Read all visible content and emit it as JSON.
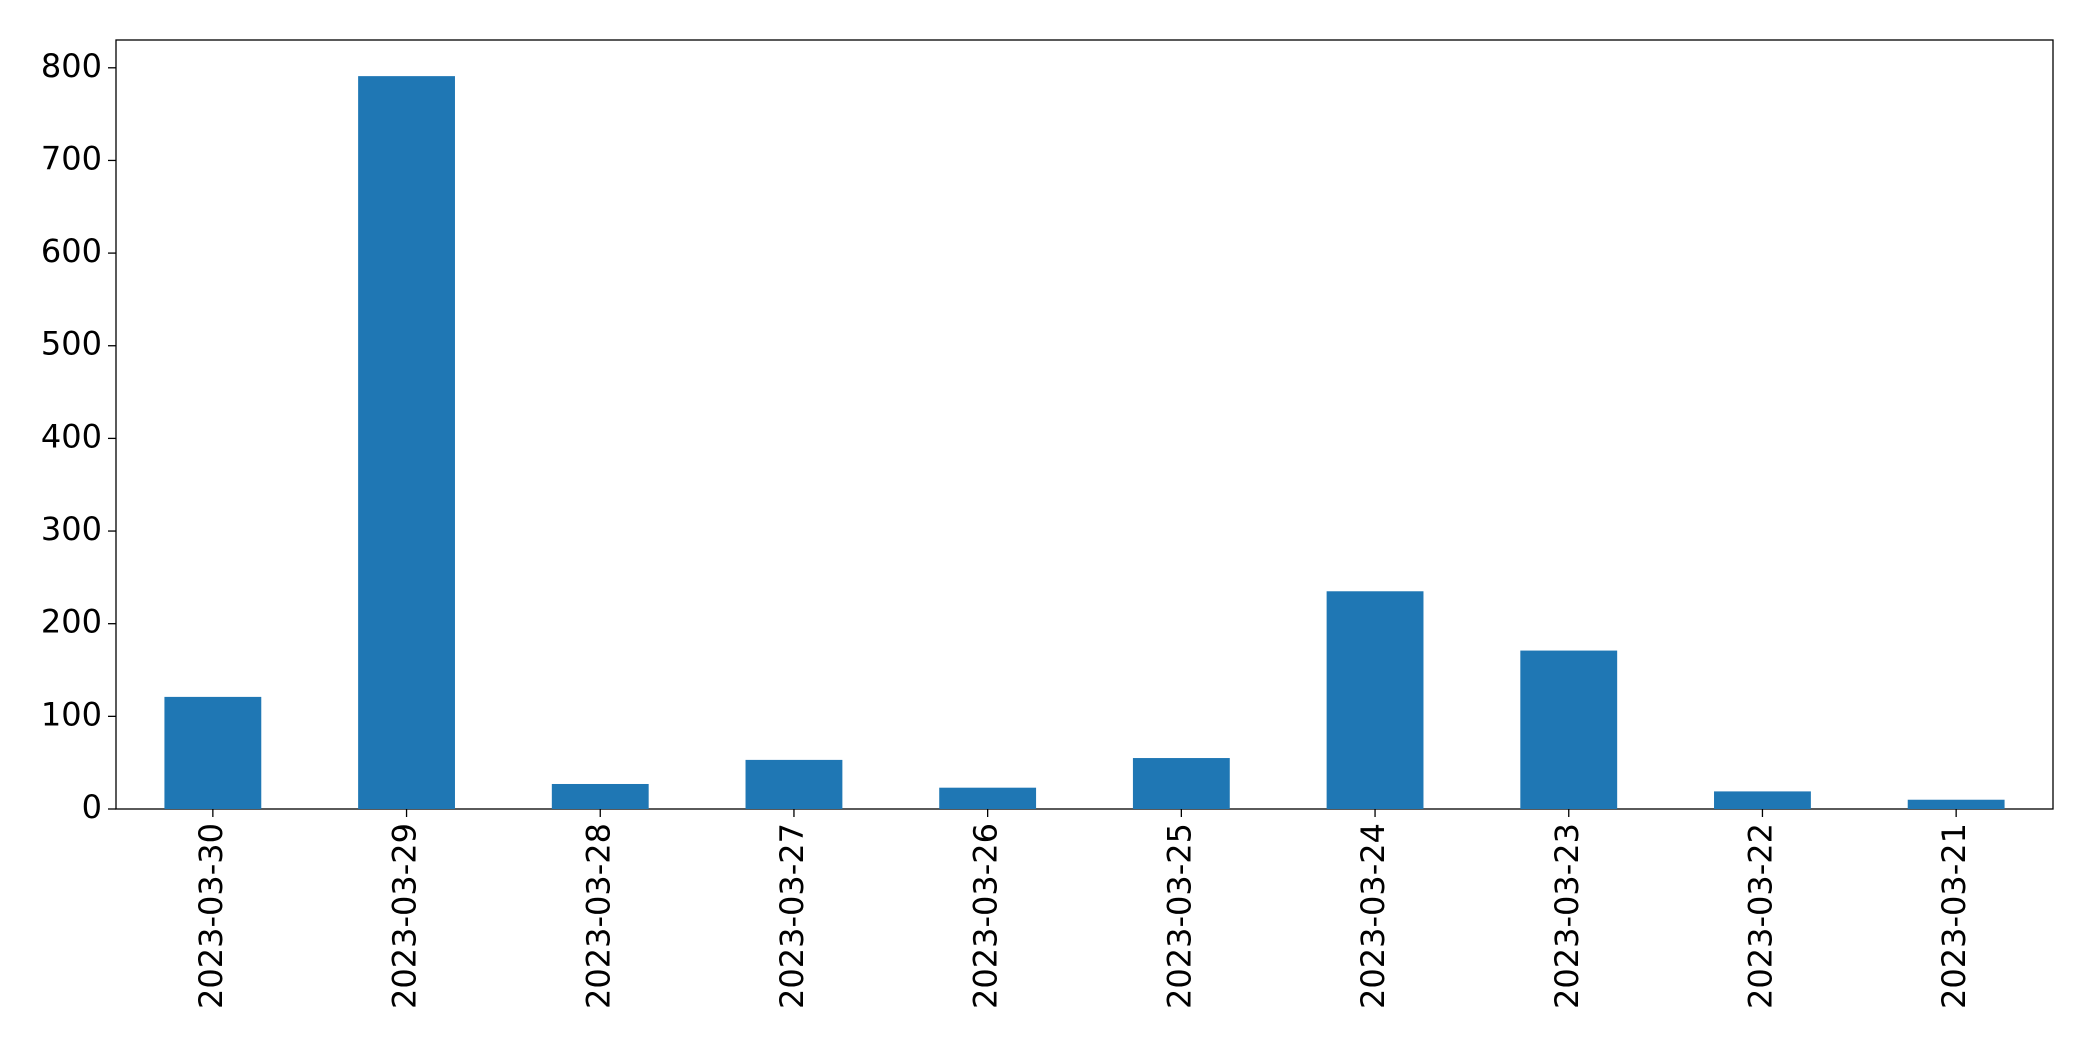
{
  "chart_data": {
    "type": "bar",
    "categories": [
      "2023-03-30",
      "2023-03-29",
      "2023-03-28",
      "2023-03-27",
      "2023-03-26",
      "2023-03-25",
      "2023-03-24",
      "2023-03-23",
      "2023-03-22",
      "2023-03-21"
    ],
    "values": [
      121,
      791,
      27,
      53,
      23,
      55,
      235,
      171,
      19,
      10
    ],
    "color": "#1f77b4",
    "ylim": [
      0,
      830
    ],
    "yticks": [
      0,
      100,
      200,
      300,
      400,
      500,
      600,
      700,
      800
    ],
    "grid": false
  }
}
